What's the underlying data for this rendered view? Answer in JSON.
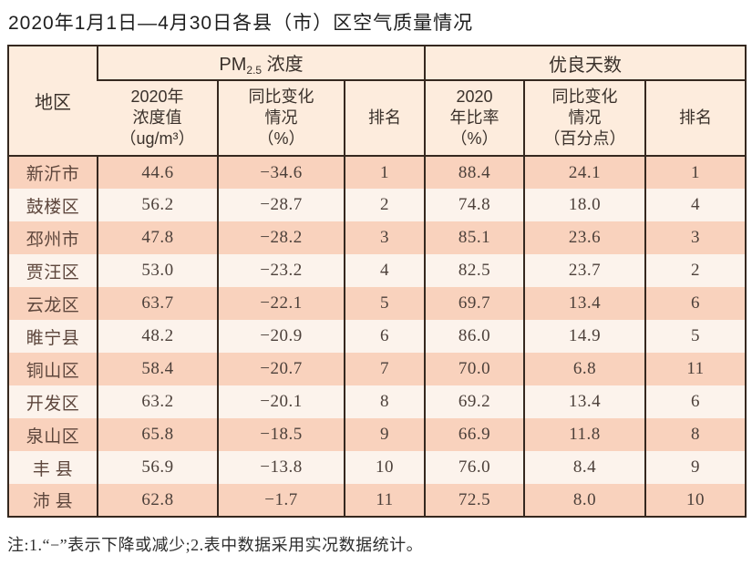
{
  "title": "2020年1月1日—4月30日各县（市）区空气质量情况",
  "table": {
    "region_header": "地区",
    "pm_group": {
      "prefix": "PM",
      "subscript": "2.5",
      "suffix": " 浓度"
    },
    "good_group_label": "优良天数",
    "sub_headers": [
      "2020年\n浓度值\n（ug/m³）",
      "同比变化\n情况\n（%）",
      "排名",
      "2020\n年比率\n（%）",
      "同比变化\n情况\n（百分点）",
      "排名"
    ],
    "rows": [
      {
        "cells": [
          "新沂市",
          "44.6",
          "−34.6",
          "1",
          "88.4",
          "24.1",
          "1"
        ]
      },
      {
        "cells": [
          "鼓楼区",
          "56.2",
          "−28.7",
          "2",
          "74.8",
          "18.0",
          "4"
        ]
      },
      {
        "cells": [
          "邳州市",
          "47.8",
          "−28.2",
          "3",
          "85.1",
          "23.6",
          "3"
        ]
      },
      {
        "cells": [
          "贾汪区",
          "53.0",
          "−23.2",
          "4",
          "82.5",
          "23.7",
          "2"
        ]
      },
      {
        "cells": [
          "云龙区",
          "63.7",
          "−22.1",
          "5",
          "69.7",
          "13.4",
          "6"
        ]
      },
      {
        "cells": [
          "睢宁县",
          "48.2",
          "−20.9",
          "6",
          "86.0",
          "14.9",
          "5"
        ]
      },
      {
        "cells": [
          "铜山区",
          "58.4",
          "−20.7",
          "7",
          "70.0",
          "6.8",
          "11"
        ]
      },
      {
        "cells": [
          "开发区",
          "63.2",
          "−20.1",
          "8",
          "69.2",
          "13.4",
          "6"
        ]
      },
      {
        "cells": [
          "泉山区",
          "65.8",
          "−18.5",
          "9",
          "66.9",
          "11.8",
          "8"
        ]
      },
      {
        "cells": [
          "丰 县",
          "56.9",
          "−13.8",
          "10",
          "76.0",
          "8.4",
          "9"
        ]
      },
      {
        "cells": [
          "沛 县",
          "62.8",
          "−1.7",
          "11",
          "72.5",
          "8.0",
          "10"
        ]
      }
    ]
  },
  "note": "注:1.“−”表示下降或减少;2.表中数据采用实况数据统计。",
  "colors": {
    "row_pink": "#f9d2bd",
    "row_light": "#fcf3ec",
    "header_bg": "#fdecdd",
    "border": "#35281f"
  }
}
